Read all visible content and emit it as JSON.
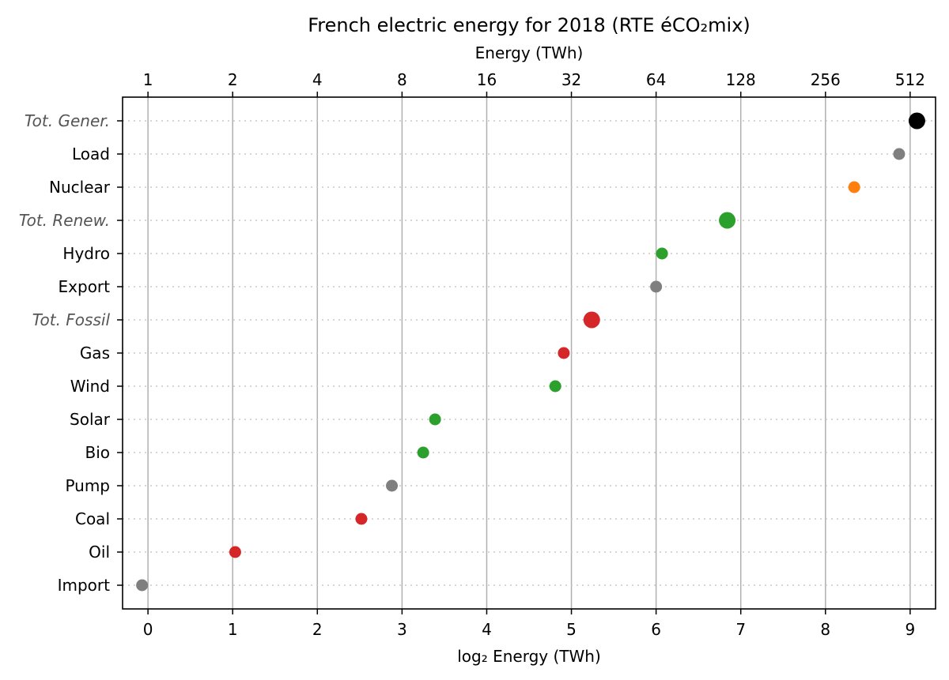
{
  "chart_data": {
    "type": "scatter",
    "title": "French electric energy for 2018 (RTE éCO₂mix)",
    "xlabel": "log₂ Energy (TWh)",
    "top_xlabel": "Energy (TWh)",
    "xlim": [
      -0.3,
      9.3
    ],
    "xticks": [
      0,
      1,
      2,
      3,
      4,
      5,
      6,
      7,
      8,
      9
    ],
    "xtick_labels": [
      "0",
      "1",
      "2",
      "3",
      "4",
      "5",
      "6",
      "7",
      "8",
      "9"
    ],
    "top_xtick_labels": [
      "1",
      "2",
      "4",
      "8",
      "16",
      "32",
      "64",
      "128",
      "256",
      "512"
    ],
    "grid": {
      "vertical": true,
      "horizontal": "dotted"
    },
    "categories": [
      "Tot. Gener.",
      "Load",
      "Nuclear",
      "Tot. Renew.",
      "Hydro",
      "Export",
      "Tot. Fossil",
      "Gas",
      "Wind",
      "Solar",
      "Bio",
      "Pump",
      "Coal",
      "Oil",
      "Import"
    ],
    "totals": [
      "Tot. Gener.",
      "Tot. Renew.",
      "Tot. Fossil"
    ],
    "values": [
      9.08,
      8.87,
      8.34,
      6.84,
      6.07,
      6.0,
      5.24,
      4.91,
      4.81,
      3.39,
      3.25,
      2.88,
      2.52,
      1.03,
      -0.07
    ],
    "colors": [
      "#000000",
      "#7f7f7f",
      "#ff7f0e",
      "#2ca02c",
      "#2ca02c",
      "#7f7f7f",
      "#d62728",
      "#d62728",
      "#2ca02c",
      "#2ca02c",
      "#2ca02c",
      "#7f7f7f",
      "#d62728",
      "#d62728",
      "#7f7f7f"
    ]
  }
}
